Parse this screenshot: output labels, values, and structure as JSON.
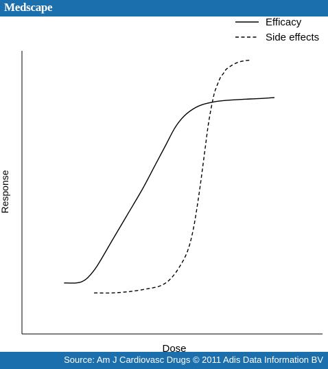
{
  "header": {
    "brand": "Medscape"
  },
  "footer": {
    "source": "Source: Am J Cardiovasc Drugs © 2011 Adis Data Information BV"
  },
  "colors": {
    "banner": "#1c6fad",
    "line": "#000000"
  },
  "chart_data": {
    "type": "line",
    "title": "",
    "xlabel": "Dose",
    "ylabel": "Response",
    "xlim": [
      0,
      100
    ],
    "ylim": [
      0,
      100
    ],
    "grid": false,
    "axis_ticks": false,
    "legend": {
      "placement": "top-right"
    },
    "series": [
      {
        "name": "Efficacy",
        "style": "solid",
        "x": [
          14,
          18,
          20,
          22,
          25,
          30,
          35,
          40,
          44,
          48,
          51,
          54,
          57,
          60,
          64,
          68,
          72,
          76,
          80,
          84
        ],
        "y": [
          18,
          18,
          18.5,
          20,
          24,
          33,
          42,
          51,
          59,
          67,
          73,
          77,
          79.5,
          81,
          82,
          82.5,
          82.8,
          83,
          83.2,
          83.5
        ]
      },
      {
        "name": "Side effects",
        "style": "dashed",
        "x": [
          24,
          30,
          36,
          42,
          46,
          49,
          52,
          55,
          57,
          59,
          61,
          62,
          63,
          64,
          65,
          66,
          67,
          68,
          70,
          72,
          74,
          76
        ],
        "y": [
          14.5,
          14.5,
          15,
          16,
          17,
          19,
          23,
          29,
          37,
          50,
          66,
          74,
          80,
          85,
          88,
          90.5,
          92,
          93.5,
          95,
          96,
          96.5,
          96.7
        ]
      }
    ]
  }
}
